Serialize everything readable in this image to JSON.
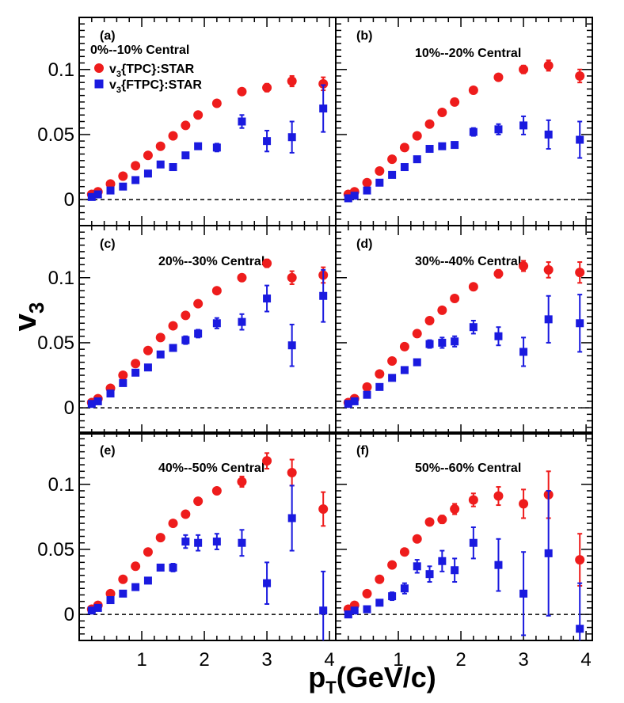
{
  "chart_data": {
    "type": "scatter",
    "ylabel_main": "v",
    "ylabel_sub": "3",
    "xlabel_main": "p",
    "xlabel_sub": "T",
    "xlabel_unit": "(GeV/c)",
    "xlim": [
      0.0,
      4.1
    ],
    "ylim": [
      -0.02,
      0.14
    ],
    "xticks": [
      1,
      2,
      3,
      4
    ],
    "yticks": [
      0,
      0.05,
      0.1
    ],
    "ytick_labels": [
      "0",
      "0.05",
      "0.1"
    ],
    "reference_line": 0,
    "legend": [
      {
        "marker": "circle",
        "prefix": "v",
        "sub": "3",
        "suffix": "{TPC}:STAR",
        "color": "#ee1c1c"
      },
      {
        "marker": "square",
        "prefix": "v",
        "sub": "3",
        "suffix": "{FTPC}:STAR",
        "color": "#1a1adf"
      }
    ],
    "panels": [
      {
        "letter": "(a)",
        "title": "0%--10% Central",
        "series": [
          {
            "marker": "circle",
            "color": "#ee1c1c",
            "x": [
              0.2,
              0.3,
              0.5,
              0.7,
              0.9,
              1.1,
              1.3,
              1.5,
              1.7,
              1.9,
              2.2,
              2.6,
              3.0,
              3.4,
              3.9
            ],
            "y": [
              0.004,
              0.006,
              0.012,
              0.018,
              0.026,
              0.034,
              0.041,
              0.049,
              0.057,
              0.065,
              0.074,
              0.083,
              0.086,
              0.091,
              0.089
            ],
            "err": [
              0.001,
              0.001,
              0.001,
              0.001,
              0.001,
              0.001,
              0.001,
              0.001,
              0.001,
              0.001,
              0.002,
              0.002,
              0.003,
              0.004,
              0.005
            ]
          },
          {
            "marker": "square",
            "color": "#1a1adf",
            "x": [
              0.2,
              0.3,
              0.5,
              0.7,
              0.9,
              1.1,
              1.3,
              1.5,
              1.7,
              1.9,
              2.2,
              2.6,
              3.0,
              3.4,
              3.9
            ],
            "y": [
              0.002,
              0.004,
              0.007,
              0.01,
              0.015,
              0.02,
              0.027,
              0.025,
              0.034,
              0.041,
              0.04,
              0.06,
              0.045,
              0.048,
              0.07
            ],
            "err": [
              0.001,
              0.001,
              0.001,
              0.001,
              0.001,
              0.002,
              0.002,
              0.002,
              0.002,
              0.002,
              0.003,
              0.005,
              0.008,
              0.012,
              0.018
            ]
          }
        ]
      },
      {
        "letter": "(b)",
        "title": "10%--20% Central",
        "series": [
          {
            "marker": "circle",
            "color": "#ee1c1c",
            "x": [
              0.2,
              0.3,
              0.5,
              0.7,
              0.9,
              1.1,
              1.3,
              1.5,
              1.7,
              1.9,
              2.2,
              2.6,
              3.0,
              3.4,
              3.9
            ],
            "y": [
              0.004,
              0.006,
              0.013,
              0.022,
              0.031,
              0.04,
              0.049,
              0.058,
              0.067,
              0.075,
              0.084,
              0.094,
              0.1,
              0.103,
              0.095
            ],
            "err": [
              0.001,
              0.001,
              0.001,
              0.001,
              0.001,
              0.001,
              0.001,
              0.001,
              0.001,
              0.001,
              0.002,
              0.002,
              0.003,
              0.004,
              0.005
            ]
          },
          {
            "marker": "square",
            "color": "#1a1adf",
            "x": [
              0.2,
              0.3,
              0.5,
              0.7,
              0.9,
              1.1,
              1.3,
              1.5,
              1.7,
              1.9,
              2.2,
              2.6,
              3.0,
              3.4,
              3.9
            ],
            "y": [
              0.001,
              0.003,
              0.007,
              0.013,
              0.019,
              0.025,
              0.031,
              0.039,
              0.041,
              0.042,
              0.052,
              0.054,
              0.057,
              0.05,
              0.046
            ],
            "err": [
              0.001,
              0.001,
              0.001,
              0.001,
              0.001,
              0.001,
              0.001,
              0.002,
              0.002,
              0.002,
              0.003,
              0.004,
              0.007,
              0.011,
              0.014
            ]
          }
        ]
      },
      {
        "letter": "(c)",
        "title": "20%--30% Central",
        "series": [
          {
            "marker": "circle",
            "color": "#ee1c1c",
            "x": [
              0.2,
              0.3,
              0.5,
              0.7,
              0.9,
              1.1,
              1.3,
              1.5,
              1.7,
              1.9,
              2.2,
              2.6,
              3.0,
              3.4,
              3.9
            ],
            "y": [
              0.004,
              0.007,
              0.015,
              0.025,
              0.034,
              0.044,
              0.054,
              0.063,
              0.071,
              0.08,
              0.09,
              0.1,
              0.111,
              0.1,
              0.102
            ],
            "err": [
              0.001,
              0.001,
              0.001,
              0.001,
              0.001,
              0.001,
              0.001,
              0.001,
              0.001,
              0.001,
              0.002,
              0.002,
              0.003,
              0.005,
              0.006
            ]
          },
          {
            "marker": "square",
            "color": "#1a1adf",
            "x": [
              0.2,
              0.3,
              0.5,
              0.7,
              0.9,
              1.1,
              1.3,
              1.5,
              1.7,
              1.9,
              2.2,
              2.6,
              3.0,
              3.4,
              3.9
            ],
            "y": [
              0.003,
              0.005,
              0.011,
              0.019,
              0.027,
              0.031,
              0.041,
              0.046,
              0.052,
              0.057,
              0.065,
              0.066,
              0.084,
              0.048,
              0.086
            ],
            "err": [
              0.001,
              0.001,
              0.001,
              0.001,
              0.001,
              0.002,
              0.002,
              0.002,
              0.003,
              0.003,
              0.004,
              0.006,
              0.01,
              0.016,
              0.02
            ]
          }
        ]
      },
      {
        "letter": "(d)",
        "title": "30%--40% Central",
        "series": [
          {
            "marker": "circle",
            "color": "#ee1c1c",
            "x": [
              0.2,
              0.3,
              0.5,
              0.7,
              0.9,
              1.1,
              1.3,
              1.5,
              1.7,
              1.9,
              2.2,
              2.6,
              3.0,
              3.4,
              3.9
            ],
            "y": [
              0.004,
              0.007,
              0.016,
              0.026,
              0.036,
              0.047,
              0.057,
              0.067,
              0.075,
              0.084,
              0.093,
              0.103,
              0.109,
              0.106,
              0.104
            ],
            "err": [
              0.001,
              0.001,
              0.001,
              0.001,
              0.001,
              0.001,
              0.001,
              0.001,
              0.001,
              0.002,
              0.002,
              0.003,
              0.004,
              0.006,
              0.008
            ]
          },
          {
            "marker": "square",
            "color": "#1a1adf",
            "x": [
              0.2,
              0.3,
              0.5,
              0.7,
              0.9,
              1.1,
              1.3,
              1.5,
              1.7,
              1.9,
              2.2,
              2.6,
              3.0,
              3.4,
              3.9
            ],
            "y": [
              0.003,
              0.005,
              0.01,
              0.016,
              0.023,
              0.029,
              0.035,
              0.049,
              0.05,
              0.051,
              0.062,
              0.055,
              0.043,
              0.068,
              0.065
            ],
            "err": [
              0.001,
              0.001,
              0.001,
              0.001,
              0.002,
              0.002,
              0.002,
              0.003,
              0.004,
              0.004,
              0.005,
              0.007,
              0.011,
              0.018,
              0.022
            ]
          }
        ]
      },
      {
        "letter": "(e)",
        "title": "40%--50% Central",
        "series": [
          {
            "marker": "circle",
            "color": "#ee1c1c",
            "x": [
              0.2,
              0.3,
              0.5,
              0.7,
              0.9,
              1.1,
              1.3,
              1.5,
              1.7,
              1.9,
              2.2,
              2.6,
              3.0,
              3.4,
              3.9
            ],
            "y": [
              0.004,
              0.007,
              0.016,
              0.027,
              0.037,
              0.048,
              0.059,
              0.07,
              0.077,
              0.087,
              0.095,
              0.102,
              0.118,
              0.109,
              0.081
            ],
            "err": [
              0.001,
              0.001,
              0.001,
              0.001,
              0.001,
              0.001,
              0.001,
              0.001,
              0.002,
              0.002,
              0.002,
              0.004,
              0.006,
              0.01,
              0.013
            ]
          },
          {
            "marker": "square",
            "color": "#1a1adf",
            "x": [
              0.2,
              0.3,
              0.5,
              0.7,
              0.9,
              1.1,
              1.3,
              1.5,
              1.7,
              1.9,
              2.2,
              2.6,
              3.0,
              3.4,
              3.9
            ],
            "y": [
              0.003,
              0.005,
              0.011,
              0.016,
              0.021,
              0.026,
              0.036,
              0.036,
              0.056,
              0.055,
              0.056,
              0.055,
              0.024,
              0.074,
              0.003
            ],
            "err": [
              0.001,
              0.001,
              0.001,
              0.001,
              0.002,
              0.002,
              0.002,
              0.003,
              0.005,
              0.006,
              0.006,
              0.01,
              0.016,
              0.025,
              0.03
            ]
          }
        ]
      },
      {
        "letter": "(f)",
        "title": "50%--60% Central",
        "series": [
          {
            "marker": "circle",
            "color": "#ee1c1c",
            "x": [
              0.2,
              0.3,
              0.5,
              0.7,
              0.9,
              1.1,
              1.3,
              1.5,
              1.7,
              1.9,
              2.2,
              2.6,
              3.0,
              3.4,
              3.9
            ],
            "y": [
              0.004,
              0.007,
              0.016,
              0.027,
              0.038,
              0.048,
              0.058,
              0.071,
              0.073,
              0.081,
              0.088,
              0.091,
              0.085,
              0.092,
              0.042
            ],
            "err": [
              0.001,
              0.001,
              0.001,
              0.001,
              0.001,
              0.001,
              0.002,
              0.002,
              0.003,
              0.004,
              0.005,
              0.007,
              0.011,
              0.018,
              0.02
            ]
          },
          {
            "marker": "square",
            "color": "#1a1adf",
            "x": [
              0.2,
              0.3,
              0.5,
              0.7,
              0.9,
              1.1,
              1.3,
              1.5,
              1.7,
              1.9,
              2.2,
              2.6,
              3.0,
              3.4,
              3.9
            ],
            "y": [
              0.0,
              0.003,
              0.004,
              0.009,
              0.014,
              0.02,
              0.037,
              0.031,
              0.041,
              0.034,
              0.055,
              0.038,
              0.016,
              0.047,
              -0.011
            ],
            "err": [
              0.001,
              0.001,
              0.002,
              0.002,
              0.003,
              0.004,
              0.005,
              0.006,
              0.008,
              0.009,
              0.012,
              0.02,
              0.032,
              0.048,
              0.035
            ]
          }
        ]
      }
    ]
  }
}
